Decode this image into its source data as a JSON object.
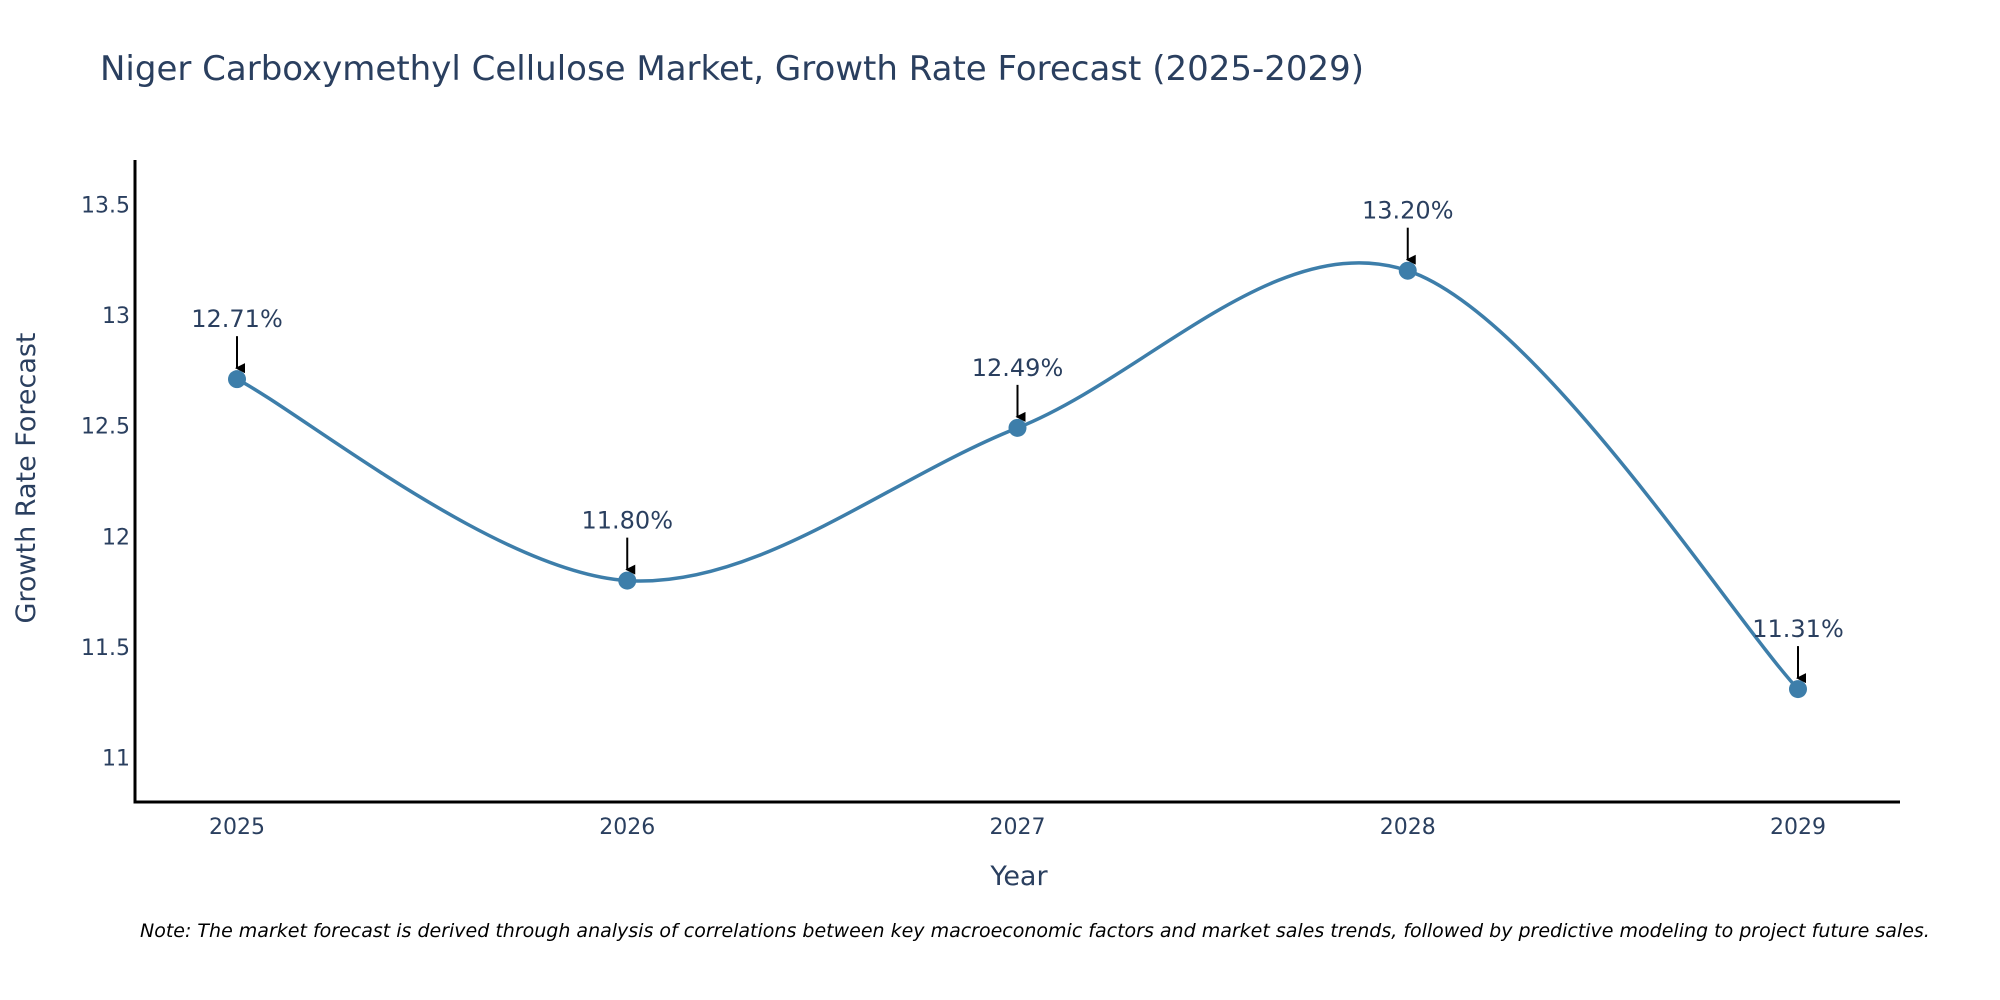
{
  "chart_data": {
    "type": "line",
    "title": "Niger Carboxymethyl Cellulose Market, Growth Rate Forecast (2025-2029)",
    "xlabel": "Year",
    "ylabel": "Growth Rate Forecast",
    "categories": [
      "2025",
      "2026",
      "2027",
      "2028",
      "2029"
    ],
    "values": [
      12.71,
      11.8,
      12.49,
      13.2,
      11.31
    ],
    "data_labels": [
      "12.71%",
      "11.80%",
      "12.49%",
      "13.20%",
      "11.31%"
    ],
    "yticks": [
      11,
      11.5,
      12,
      12.5,
      13,
      13.5
    ],
    "ytick_labels": [
      "11",
      "11.5",
      "12",
      "12.5",
      "13",
      "13.5"
    ],
    "ylim": [
      10.8,
      13.7
    ],
    "grid": false,
    "line_style": "spline",
    "colors": {
      "line": "#3d7eaa",
      "marker": "#3d7eaa",
      "axis": "#000000",
      "arrow": "#000000"
    }
  },
  "note": "Note: The market forecast is derived through analysis of correlations between key macroeconomic factors and market sales trends, followed by predictive modeling to project future sales."
}
